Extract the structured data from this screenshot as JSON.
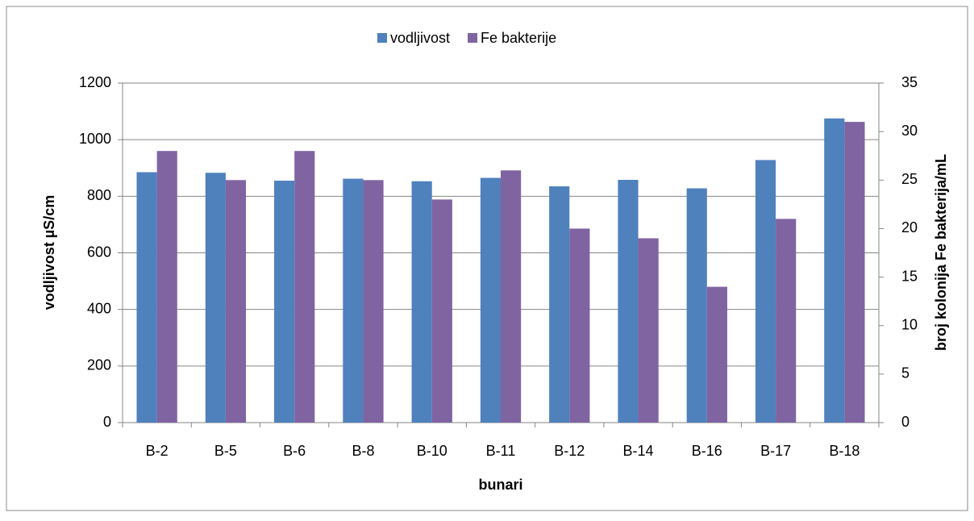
{
  "chart_data": {
    "type": "bar",
    "categories": [
      "B-2",
      "B-5",
      "B-6",
      "B-8",
      "B-10",
      "B-11",
      "B-12",
      "B-14",
      "B-16",
      "B-17",
      "B-18"
    ],
    "series": [
      {
        "name": "vodljivost",
        "color": "#4f81bd",
        "values": [
          885,
          883,
          855,
          862,
          853,
          865,
          835,
          858,
          828,
          928,
          1075
        ]
      },
      {
        "name": "Fe bakterije",
        "color": "#8064a2",
        "axis": "y2",
        "values": [
          28,
          25,
          28,
          25,
          23,
          26,
          20,
          19,
          14,
          21,
          31
        ]
      }
    ],
    "ylim": [
      0,
      1200
    ],
    "yticks": [
      0,
      200,
      400,
      600,
      800,
      1000,
      1200
    ],
    "y2lim": [
      0,
      35
    ],
    "y2ticks": [
      0,
      5,
      10,
      15,
      20,
      25,
      30,
      35
    ],
    "ylabel": "vodljivost µS/cm",
    "y2label": "broj kolonija Fe bakterija/mL",
    "xlabel": "bunari",
    "grid": true,
    "legend": "top"
  }
}
